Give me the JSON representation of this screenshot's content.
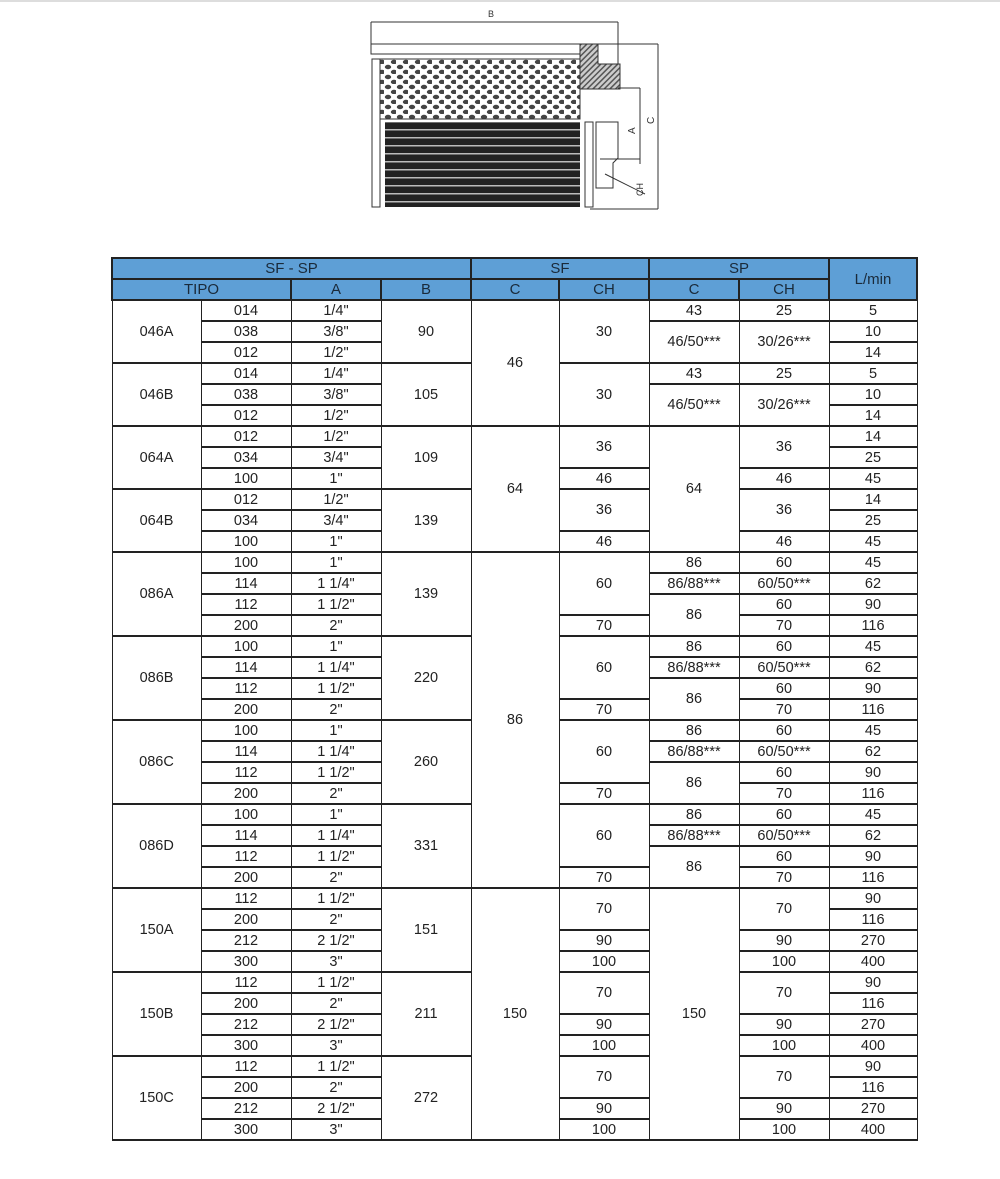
{
  "drawing": {
    "labels": {
      "b": "B",
      "a": "A",
      "c": "C",
      "ch": "CH"
    }
  },
  "table": {
    "header_top": [
      "SF - SP",
      "SF",
      "SP",
      "L/min"
    ],
    "header_sub": [
      "TIPO",
      "A",
      "B",
      "C",
      "CH",
      "C",
      "CH"
    ],
    "rows": [
      [
        [
          "046A",
          3
        ],
        [
          "014",
          1
        ],
        [
          "1/4\"",
          1
        ],
        [
          "90",
          3
        ],
        [
          "46",
          6
        ],
        [
          "30",
          3
        ],
        [
          "43",
          1
        ],
        [
          "25",
          1
        ],
        [
          "5",
          1
        ]
      ],
      [
        [
          "038",
          1
        ],
        [
          "3/8\"",
          1
        ],
        [
          "46/50***",
          2
        ],
        [
          "30/26***",
          2
        ],
        [
          "10",
          1
        ]
      ],
      [
        [
          "012",
          1
        ],
        [
          "1/2\"",
          1
        ],
        [
          "14",
          1
        ]
      ],
      [
        [
          "046B",
          3
        ],
        [
          "014",
          1
        ],
        [
          "1/4\"",
          1
        ],
        [
          "105",
          3
        ],
        [
          "30",
          3
        ],
        [
          "43",
          1
        ],
        [
          "25",
          1
        ],
        [
          "5",
          1
        ]
      ],
      [
        [
          "038",
          1
        ],
        [
          "3/8\"",
          1
        ],
        [
          "46/50***",
          2
        ],
        [
          "30/26***",
          2
        ],
        [
          "10",
          1
        ]
      ],
      [
        [
          "012",
          1
        ],
        [
          "1/2\"",
          1
        ],
        [
          "14",
          1
        ]
      ],
      [
        [
          "064A",
          3
        ],
        [
          "012",
          1
        ],
        [
          "1/2\"",
          1
        ],
        [
          "109",
          3
        ],
        [
          "64",
          6
        ],
        [
          "36",
          2
        ],
        [
          "64",
          6
        ],
        [
          "36",
          2
        ],
        [
          "14",
          1
        ]
      ],
      [
        [
          "034",
          1
        ],
        [
          "3/4\"",
          1
        ],
        [
          "25",
          1
        ]
      ],
      [
        [
          "100",
          1
        ],
        [
          "1\"",
          1
        ],
        [
          "46",
          1
        ],
        [
          "46",
          1
        ],
        [
          "45",
          1
        ]
      ],
      [
        [
          "064B",
          3
        ],
        [
          "012",
          1
        ],
        [
          "1/2\"",
          1
        ],
        [
          "139",
          3
        ],
        [
          "36",
          2
        ],
        [
          "36",
          2
        ],
        [
          "14",
          1
        ]
      ],
      [
        [
          "034",
          1
        ],
        [
          "3/4\"",
          1
        ],
        [
          "25",
          1
        ]
      ],
      [
        [
          "100",
          1
        ],
        [
          "1\"",
          1
        ],
        [
          "46",
          1
        ],
        [
          "46",
          1
        ],
        [
          "45",
          1
        ]
      ],
      [
        [
          "086A",
          4
        ],
        [
          "100",
          1
        ],
        [
          "1\"",
          1
        ],
        [
          "139",
          4
        ],
        [
          "86",
          16
        ],
        [
          "60",
          3
        ],
        [
          "86",
          1
        ],
        [
          "60",
          1
        ],
        [
          "45",
          1
        ]
      ],
      [
        [
          "114",
          1
        ],
        [
          "1 1/4\"",
          1
        ],
        [
          "86/88***",
          1
        ],
        [
          "60/50***",
          1
        ],
        [
          "62",
          1
        ]
      ],
      [
        [
          "112",
          1
        ],
        [
          "1 1/2\"",
          1
        ],
        [
          "86",
          2
        ],
        [
          "60",
          1
        ],
        [
          "90",
          1
        ]
      ],
      [
        [
          "200",
          1
        ],
        [
          "2\"",
          1
        ],
        [
          "70",
          1
        ],
        [
          "70",
          1
        ],
        [
          "116",
          1
        ]
      ],
      [
        [
          "086B",
          4
        ],
        [
          "100",
          1
        ],
        [
          "1\"",
          1
        ],
        [
          "220",
          4
        ],
        [
          "60",
          3
        ],
        [
          "86",
          1
        ],
        [
          "60",
          1
        ],
        [
          "45",
          1
        ]
      ],
      [
        [
          "114",
          1
        ],
        [
          "1 1/4\"",
          1
        ],
        [
          "86/88***",
          1
        ],
        [
          "60/50***",
          1
        ],
        [
          "62",
          1
        ]
      ],
      [
        [
          "112",
          1
        ],
        [
          "1 1/2\"",
          1
        ],
        [
          "86",
          2
        ],
        [
          "60",
          1
        ],
        [
          "90",
          1
        ]
      ],
      [
        [
          "200",
          1
        ],
        [
          "2\"",
          1
        ],
        [
          "70",
          1
        ],
        [
          "70",
          1
        ],
        [
          "116",
          1
        ]
      ],
      [
        [
          "086C",
          4
        ],
        [
          "100",
          1
        ],
        [
          "1\"",
          1
        ],
        [
          "260",
          4
        ],
        [
          "60",
          3
        ],
        [
          "86",
          1
        ],
        [
          "60",
          1
        ],
        [
          "45",
          1
        ]
      ],
      [
        [
          "114",
          1
        ],
        [
          "1 1/4\"",
          1
        ],
        [
          "86/88***",
          1
        ],
        [
          "60/50***",
          1
        ],
        [
          "62",
          1
        ]
      ],
      [
        [
          "112",
          1
        ],
        [
          "1 1/2\"",
          1
        ],
        [
          "86",
          2
        ],
        [
          "60",
          1
        ],
        [
          "90",
          1
        ]
      ],
      [
        [
          "200",
          1
        ],
        [
          "2\"",
          1
        ],
        [
          "70",
          1
        ],
        [
          "70",
          1
        ],
        [
          "116",
          1
        ]
      ],
      [
        [
          "086D",
          4
        ],
        [
          "100",
          1
        ],
        [
          "1\"",
          1
        ],
        [
          "331",
          4
        ],
        [
          "60",
          3
        ],
        [
          "86",
          1
        ],
        [
          "60",
          1
        ],
        [
          "45",
          1
        ]
      ],
      [
        [
          "114",
          1
        ],
        [
          "1 1/4\"",
          1
        ],
        [
          "86/88***",
          1
        ],
        [
          "60/50***",
          1
        ],
        [
          "62",
          1
        ]
      ],
      [
        [
          "112",
          1
        ],
        [
          "1 1/2\"",
          1
        ],
        [
          "86",
          2
        ],
        [
          "60",
          1
        ],
        [
          "90",
          1
        ]
      ],
      [
        [
          "200",
          1
        ],
        [
          "2\"",
          1
        ],
        [
          "70",
          1
        ],
        [
          "70",
          1
        ],
        [
          "116",
          1
        ]
      ],
      [
        [
          "150A",
          4
        ],
        [
          "112",
          1
        ],
        [
          "1 1/2\"",
          1
        ],
        [
          "151",
          4
        ],
        [
          "150",
          12
        ],
        [
          "70",
          2
        ],
        [
          "150",
          12
        ],
        [
          "70",
          2
        ],
        [
          "90",
          1
        ]
      ],
      [
        [
          "200",
          1
        ],
        [
          "2\"",
          1
        ],
        [
          "116",
          1
        ]
      ],
      [
        [
          "212",
          1
        ],
        [
          "2 1/2\"",
          1
        ],
        [
          "90",
          1
        ],
        [
          "90",
          1
        ],
        [
          "270",
          1
        ]
      ],
      [
        [
          "300",
          1
        ],
        [
          "3\"",
          1
        ],
        [
          "100",
          1
        ],
        [
          "100",
          1
        ],
        [
          "400",
          1
        ]
      ],
      [
        [
          "150B",
          4
        ],
        [
          "112",
          1
        ],
        [
          "1 1/2\"",
          1
        ],
        [
          "211",
          4
        ],
        [
          "70",
          2
        ],
        [
          "70",
          2
        ],
        [
          "90",
          1
        ]
      ],
      [
        [
          "200",
          1
        ],
        [
          "2\"",
          1
        ],
        [
          "116",
          1
        ]
      ],
      [
        [
          "212",
          1
        ],
        [
          "2 1/2\"",
          1
        ],
        [
          "90",
          1
        ],
        [
          "90",
          1
        ],
        [
          "270",
          1
        ]
      ],
      [
        [
          "300",
          1
        ],
        [
          "3\"",
          1
        ],
        [
          "100",
          1
        ],
        [
          "100",
          1
        ],
        [
          "400",
          1
        ]
      ],
      [
        [
          "150C",
          4
        ],
        [
          "112",
          1
        ],
        [
          "1 1/2\"",
          1
        ],
        [
          "272",
          4
        ],
        [
          "70",
          2
        ],
        [
          "70",
          2
        ],
        [
          "90",
          1
        ]
      ],
      [
        [
          "200",
          1
        ],
        [
          "2\"",
          1
        ],
        [
          "116",
          1
        ]
      ],
      [
        [
          "212",
          1
        ],
        [
          "2 1/2\"",
          1
        ],
        [
          "90",
          1
        ],
        [
          "90",
          1
        ],
        [
          "270",
          1
        ]
      ],
      [
        [
          "300",
          1
        ],
        [
          "3\"",
          1
        ],
        [
          "100",
          1
        ],
        [
          "100",
          1
        ],
        [
          "400",
          1
        ]
      ]
    ]
  }
}
